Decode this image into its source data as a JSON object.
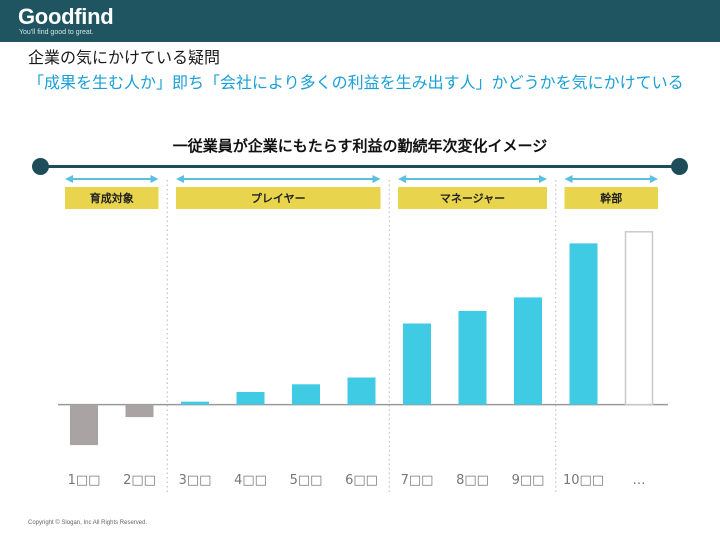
{
  "header": {
    "logo": "Goodfind",
    "tagline": "You'll find good to great."
  },
  "question": {
    "title": "企業の気にかけている疑問",
    "body": "「成果を生む人か」即ち「会社により多くの利益を生み出す人」かどうかを気にかけている"
  },
  "footer": "Copyright © Slogan, Inc All Rights Reserved.",
  "colors": {
    "header_bg": "#1e5561",
    "accent_text": "#1a9fd6",
    "bar_positive": "#3fcbe4",
    "bar_negative": "#aaa3a3",
    "phase_label_bg": "#e8d44d",
    "arrow": "#5bc0de",
    "timeline": "#1e4d5a"
  },
  "chart_data": {
    "type": "bar",
    "title": "一従業員が企業にもたらす利益の勤続年次変化イメージ",
    "categories": [
      "1□□",
      "2□□",
      "3□□",
      "4□□",
      "5□□",
      "6□□",
      "7□□",
      "8□□",
      "9□□",
      "10□□",
      "…"
    ],
    "values": [
      -42,
      -13,
      3,
      13,
      21,
      28,
      84,
      97,
      111,
      167,
      179
    ],
    "value_styles": [
      "negative",
      "negative",
      "positive",
      "positive",
      "positive",
      "positive",
      "positive",
      "positive",
      "positive",
      "positive",
      "outline"
    ],
    "ylim": [
      -45,
      185
    ],
    "grid": false,
    "phases": [
      {
        "label": "育成対象",
        "from": 0,
        "to": 1
      },
      {
        "label": "プレイヤー",
        "from": 2,
        "to": 5
      },
      {
        "label": "マネージャー",
        "from": 6,
        "to": 8
      },
      {
        "label": "幹部",
        "from": 9,
        "to": 10
      }
    ]
  }
}
